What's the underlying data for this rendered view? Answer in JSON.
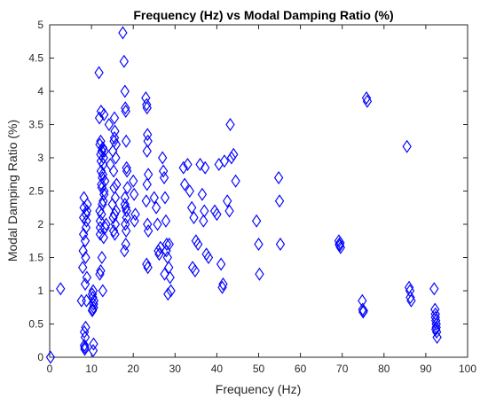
{
  "chart_data": {
    "type": "scatter",
    "title": "Frequency (Hz) vs Modal Damping Ratio (%)",
    "xlabel": "Frequency (Hz)",
    "ylabel": "Modal Damping Ratio (%)",
    "xlim": [
      0,
      100
    ],
    "ylim": [
      0,
      5
    ],
    "xticks": [
      0,
      10,
      20,
      30,
      40,
      50,
      60,
      70,
      80,
      90,
      100
    ],
    "yticks": [
      0,
      0.5,
      1,
      1.5,
      2,
      2.5,
      3,
      3.5,
      4,
      4.5,
      5
    ],
    "xtick_labels": [
      "0",
      "10",
      "20",
      "30",
      "40",
      "50",
      "60",
      "70",
      "80",
      "90",
      "100"
    ],
    "ytick_labels": [
      "0",
      "0.5",
      "1",
      "1.5",
      "2",
      "2.5",
      "3",
      "3.5",
      "4",
      "4.5",
      "5"
    ],
    "marker": "diamond-open",
    "marker_color": "#0000ff",
    "grid": false,
    "series": [
      {
        "x": [
          0.2,
          2.6,
          7.6,
          7.9,
          8.0,
          8.1,
          8.2,
          8.3,
          8.4,
          8.5,
          8.5,
          8.6,
          8.7,
          8.8,
          8.9,
          9.0,
          8.2,
          8.4,
          8.6,
          8.3,
          8.5,
          8.7,
          8.9,
          8.8,
          8.1,
          10.2,
          10.3,
          10.4,
          10.5,
          10.5,
          10.6,
          10.4,
          10.3,
          10.2,
          10.5,
          11.8,
          11.9,
          12.0,
          12.0,
          12.1,
          12.1,
          12.2,
          12.2,
          12.3,
          12.3,
          12.4,
          12.4,
          12.5,
          12.5,
          12.6,
          12.6,
          12.7,
          12.7,
          12.8,
          12.8,
          12.9,
          12.9,
          13.0,
          13.0,
          13.1,
          13.2,
          13.3,
          13.5,
          12.5,
          12.2,
          12.0,
          12.7,
          13.0,
          12.1,
          12.3,
          14.2,
          14.5,
          15.0,
          15.2,
          15.3,
          15.4,
          15.5,
          15.6,
          15.7,
          15.8,
          15.9,
          16.0,
          15.5,
          15.7,
          15.1,
          15.4,
          15.9,
          15.3,
          15.6,
          15.5,
          17.5,
          17.8,
          18.0,
          18.1,
          18.2,
          18.3,
          18.4,
          18.5,
          18.6,
          18.0,
          18.2,
          18.4,
          18.1,
          18.3,
          17.9,
          18.2,
          18.4,
          18.0,
          20.0,
          20.2,
          20.5,
          20.3,
          23.0,
          23.2,
          23.3,
          23.4,
          23.5,
          23.6,
          23.3,
          23.1,
          23.4,
          23.2,
          23.5,
          23.6,
          23.3,
          25.0,
          25.5,
          26.0,
          26.5,
          25.8,
          26.2,
          27.0,
          27.2,
          27.4,
          27.6,
          27.8,
          28.0,
          28.2,
          28.5,
          27.5,
          28.8,
          29.0,
          28.3,
          27.9,
          28.6,
          32.0,
          32.3,
          33.0,
          33.5,
          34.0,
          34.5,
          35.0,
          34.2,
          34.8,
          35.5,
          36.0,
          36.5,
          37.0,
          37.5,
          38.0,
          36.8,
          37.2,
          39.5,
          40.0,
          40.5,
          41.0,
          41.3,
          41.5,
          41.8,
          42.5,
          43.0,
          43.5,
          44.0,
          44.5,
          43.2,
          49.5,
          50.0,
          50.2,
          54.8,
          55.0,
          55.2,
          69.2,
          69.3,
          69.4,
          69.5,
          69.6,
          74.8,
          74.9,
          75.0,
          75.1,
          75.8,
          76.0,
          85.5,
          86.0,
          86.2,
          86.3,
          86.5,
          92.0,
          92.2,
          92.3,
          92.4,
          92.5,
          92.6,
          92.7,
          92.5,
          92.3,
          92.4
        ],
        "y": [
          0.0,
          1.03,
          0.85,
          1.35,
          1.6,
          2.1,
          2.25,
          0.18,
          0.12,
          0.3,
          1.75,
          0.45,
          1.95,
          2.05,
          1.2,
          2.3,
          2.4,
          0.15,
          1.5,
          0.38,
          1.1,
          2.15,
          2.2,
          0.85,
          1.85,
          0.7,
          0.9,
          1.0,
          0.75,
          0.2,
          0.85,
          0.1,
          0.72,
          0.95,
          0.8,
          4.28,
          3.6,
          3.2,
          2.2,
          1.95,
          2.05,
          3.05,
          1.3,
          3.7,
          2.8,
          2.6,
          2.15,
          3.1,
          1.5,
          2.7,
          2.3,
          3.15,
          1.0,
          2.9,
          2.35,
          3.0,
          1.8,
          3.65,
          2.5,
          3.1,
          2.65,
          1.95,
          2.0,
          2.55,
          3.25,
          1.25,
          2.75,
          2.45,
          1.85,
          2.95,
          3.5,
          2.9,
          2.3,
          2.1,
          1.9,
          3.25,
          3.6,
          3.4,
          2.4,
          3.0,
          3.2,
          2.6,
          2.15,
          2.0,
          3.1,
          2.55,
          2.2,
          2.8,
          1.85,
          3.3,
          4.88,
          4.45,
          4.0,
          3.75,
          3.7,
          3.25,
          2.85,
          2.8,
          2.55,
          2.4,
          2.25,
          2.1,
          2.0,
          1.9,
          1.6,
          1.7,
          2.2,
          2.3,
          2.65,
          2.45,
          2.15,
          2.05,
          3.9,
          3.8,
          3.75,
          3.35,
          3.25,
          2.75,
          2.6,
          2.35,
          2.0,
          1.4,
          1.35,
          1.9,
          3.1,
          2.4,
          2.25,
          1.6,
          1.65,
          2.0,
          1.55,
          3.0,
          2.8,
          2.7,
          2.4,
          2.05,
          1.7,
          1.5,
          1.35,
          1.25,
          1.2,
          1.0,
          0.95,
          1.6,
          1.7,
          2.85,
          2.6,
          2.9,
          2.5,
          2.25,
          2.1,
          1.75,
          1.35,
          1.3,
          1.7,
          2.9,
          2.45,
          2.2,
          1.55,
          1.5,
          2.05,
          2.85,
          2.2,
          2.15,
          2.9,
          1.4,
          1.05,
          1.1,
          2.95,
          2.35,
          2.2,
          3.0,
          3.05,
          2.65,
          3.5,
          2.05,
          1.7,
          1.25,
          2.7,
          2.35,
          1.7,
          1.75,
          1.7,
          1.68,
          1.72,
          1.65,
          0.85,
          0.72,
          0.68,
          0.7,
          3.9,
          3.85,
          3.17,
          1.05,
          1.0,
          0.9,
          0.85,
          1.03,
          0.72,
          0.6,
          0.55,
          0.45,
          0.38,
          0.3,
          0.5,
          0.65,
          0.42
        ]
      }
    ]
  }
}
